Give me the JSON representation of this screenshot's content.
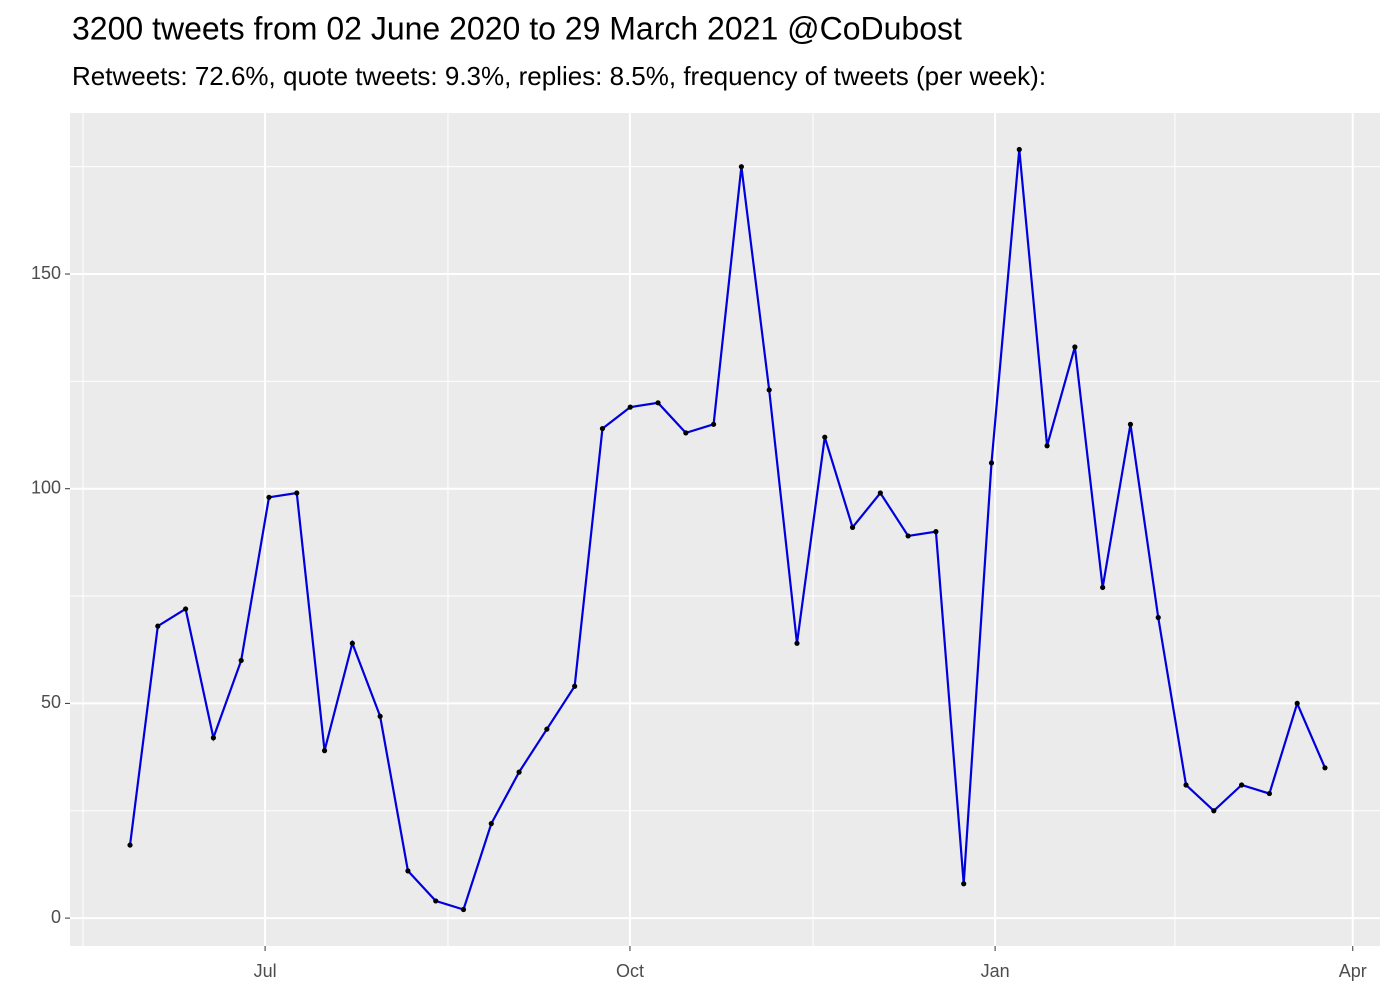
{
  "chart_data": {
    "type": "line",
    "title": "3200 tweets from 02 June 2020 to 29 March 2021 @CoDubost",
    "subtitle": "Retweets: 72.6%, quote tweets: 9.3%, replies: 8.5%, frequency of tweets (per week):",
    "x": [
      0,
      1,
      2,
      3,
      4,
      5,
      6,
      7,
      8,
      9,
      10,
      11,
      12,
      13,
      14,
      15,
      16,
      17,
      18,
      19,
      20,
      21,
      22,
      23,
      24,
      25,
      26,
      27,
      28,
      29,
      30,
      31,
      32,
      33,
      34,
      35,
      36,
      37,
      38,
      39,
      40,
      41,
      42,
      43
    ],
    "series": [
      {
        "color": "#0000dd",
        "point_color": "#000000",
        "values": [
          17,
          68,
          72,
          42,
          60,
          98,
          99,
          39,
          64,
          47,
          11,
          4,
          2,
          22,
          34,
          44,
          54,
          114,
          119,
          120,
          113,
          115,
          175,
          123,
          64,
          112,
          91,
          99,
          89,
          90,
          8,
          106,
          179,
          110,
          133,
          77,
          115,
          70,
          31,
          25,
          31,
          29,
          50,
          35
        ]
      }
    ],
    "xlim": [
      -2.16,
      44.98
    ],
    "xticks": [
      {
        "value": 4.86,
        "label": "Jul"
      },
      {
        "value": 17.99,
        "label": "Oct"
      },
      {
        "value": 31.13,
        "label": "Jan"
      },
      {
        "value": 44.0,
        "label": "Apr"
      }
    ],
    "xminor": [
      -1.69,
      11.44,
      24.58,
      37.6
    ],
    "ylim": [
      -6.5,
      187.5
    ],
    "yticks": [
      0,
      50,
      100,
      150
    ],
    "yminor": [
      25,
      75,
      125,
      175
    ],
    "grid": true
  }
}
